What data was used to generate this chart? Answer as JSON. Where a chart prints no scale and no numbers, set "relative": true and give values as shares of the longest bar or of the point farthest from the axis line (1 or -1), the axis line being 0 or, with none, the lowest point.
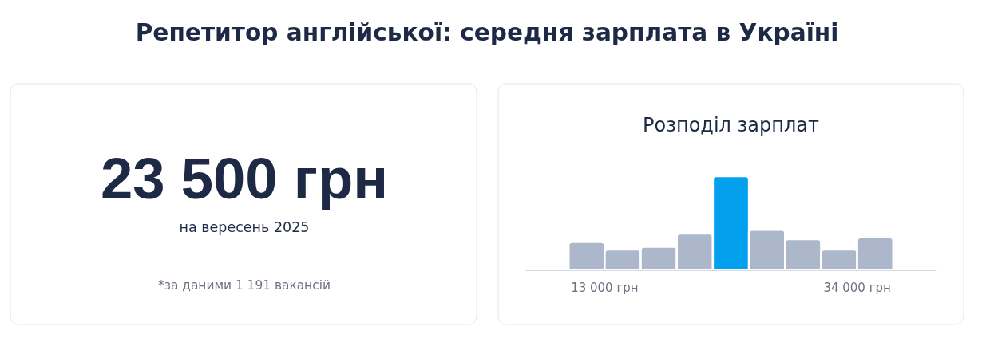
{
  "chart_data": [
    {
      "type": "other",
      "title": "Репетитор англійської: середня зарплата в Україні",
      "annotations": [
        "23 500 грн",
        "на вересень 2025",
        "*за даними 1 191 вакансій"
      ]
    },
    {
      "type": "bar",
      "title": "Розподіл зарплат",
      "relative": true,
      "categories": [
        null,
        null,
        null,
        null,
        null,
        null,
        null,
        null,
        null
      ],
      "values": [
        0.3,
        0.22,
        0.25,
        0.39,
        1,
        0.43,
        0.33,
        0.22,
        0.35
      ],
      "colors": [
        "#adb7cb",
        "#adb7cb",
        "#adb7cb",
        "#adb7cb",
        "#03a0ed",
        "#adb7cb",
        "#adb7cb",
        "#adb7cb",
        "#adb7cb"
      ],
      "annotations": [
        "13 000 грн",
        "34 000 грн"
      ]
    }
  ]
}
